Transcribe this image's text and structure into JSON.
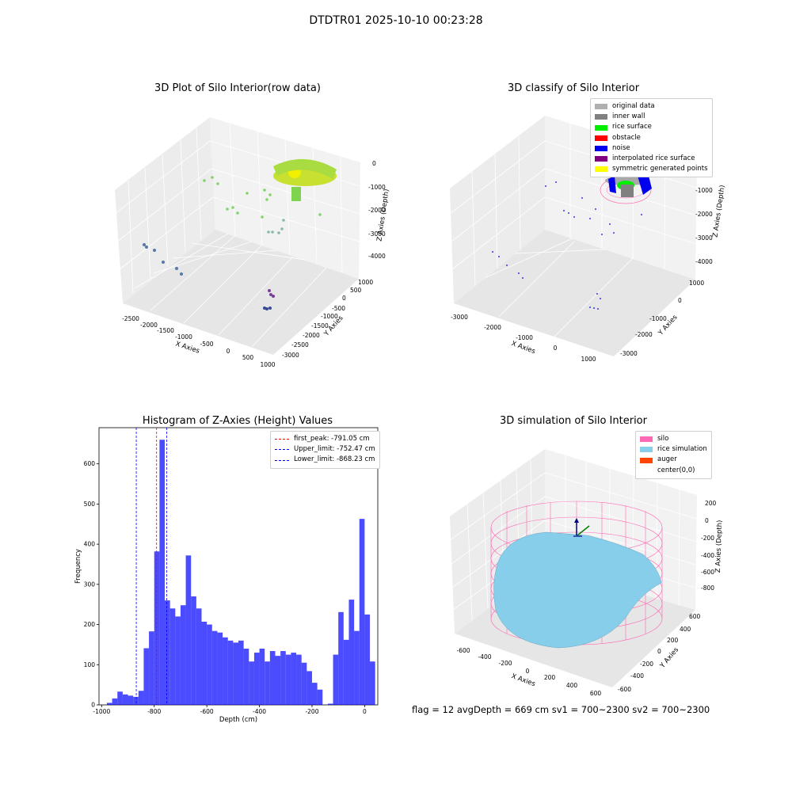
{
  "suptitle": "DTDTR01 2025-10-10 00:23:28",
  "panels": {
    "raw": {
      "title": "3D Plot of Silo Interior(row data)",
      "xlabel": "X Axies",
      "ylabel": "Y Axies",
      "zlabel": "Z Axies (Depth)",
      "xticks": [
        "-2500",
        "-2000",
        "-1500",
        "-1000",
        "-500",
        "0",
        "500",
        "1000"
      ],
      "yticks": [
        "1000",
        "500",
        "0",
        "-500",
        "-1000",
        "-1500",
        "-2000",
        "-2500",
        "-3000"
      ],
      "zticks": [
        "0",
        "-1000",
        "-2000",
        "-3000",
        "-4000"
      ]
    },
    "classify": {
      "title": "3D classify of Silo Interior",
      "xlabel": "X Axies",
      "ylabel": "Y Axies",
      "zlabel": "Z Axies (Depth)",
      "xticks": [
        "-3000",
        "-2000",
        "-1000",
        "0",
        "1000"
      ],
      "yticks": [
        "1000",
        "0",
        "-1000",
        "-2000",
        "-3000"
      ],
      "zticks": [
        "0",
        "-1000",
        "-2000",
        "-3000",
        "-4000"
      ],
      "legend": [
        {
          "label": "original data",
          "color": "#b0b0b0"
        },
        {
          "label": "inner wall",
          "color": "#808080"
        },
        {
          "label": "rice surface",
          "color": "#00ee00"
        },
        {
          "label": "obstacle",
          "color": "#ff0000"
        },
        {
          "label": "noise",
          "color": "#0000ee"
        },
        {
          "label": "interpolated rice surface",
          "color": "#800080"
        },
        {
          "label": "symmetric generated points",
          "color": "#ffff00"
        }
      ]
    },
    "simulation": {
      "title": "3D simulation of Silo Interior",
      "xlabel": "X Axies",
      "ylabel": "Y Axies",
      "zlabel": "Z Axies (Depth)",
      "xticks": [
        "-600",
        "-400",
        "-200",
        "0",
        "200",
        "400",
        "600"
      ],
      "yticks": [
        "600",
        "400",
        "200",
        "0",
        "-200",
        "-400",
        "-600"
      ],
      "zticks": [
        "200",
        "0",
        "-200",
        "-400",
        "-600",
        "-800"
      ],
      "legend": [
        {
          "label": "silo",
          "color": "#ff69b4"
        },
        {
          "label": "rice simulation",
          "color": "#87ceeb"
        },
        {
          "label": "auger",
          "color": "#ff4500"
        },
        {
          "label": "center(0,0)",
          "color": ""
        }
      ]
    }
  },
  "chart_data": {
    "type": "bar",
    "title": "Histogram of Z-Axies (Height) Values",
    "xlabel": "Depth (cm)",
    "ylabel": "Frequency",
    "xlim": [
      -1010,
      50
    ],
    "ylim": [
      0,
      690
    ],
    "xticks": [
      -1000,
      -800,
      -600,
      -400,
      -200,
      0
    ],
    "yticks": [
      0,
      100,
      200,
      300,
      400,
      500,
      600
    ],
    "bar_color": "#0000ff",
    "bin_start": -980,
    "bin_width": 20,
    "values": [
      5,
      16,
      33,
      26,
      23,
      20,
      35,
      141,
      183,
      382,
      660,
      260,
      240,
      220,
      248,
      372,
      270,
      240,
      207,
      200,
      184,
      180,
      168,
      160,
      155,
      160,
      140,
      108,
      130,
      140,
      108,
      134,
      122,
      134,
      125,
      130,
      125,
      105,
      84,
      55,
      38,
      0,
      3,
      125,
      231,
      162,
      262,
      184,
      463,
      225,
      108
    ],
    "lines": [
      {
        "name": "first_peak: -791.05 cm",
        "x": -791.05,
        "color": "#ff0000"
      },
      {
        "name": "Upper_limit: -752.47 cm",
        "x": -752.47,
        "color": "#0000ff"
      },
      {
        "name": "Lower_limit: -868.23 cm",
        "x": -868.23,
        "color": "#0000ff"
      }
    ]
  },
  "footer": "flag = 12   avgDepth = 669 cm   sv1 = 700~2300   sv2 = 700~2300"
}
